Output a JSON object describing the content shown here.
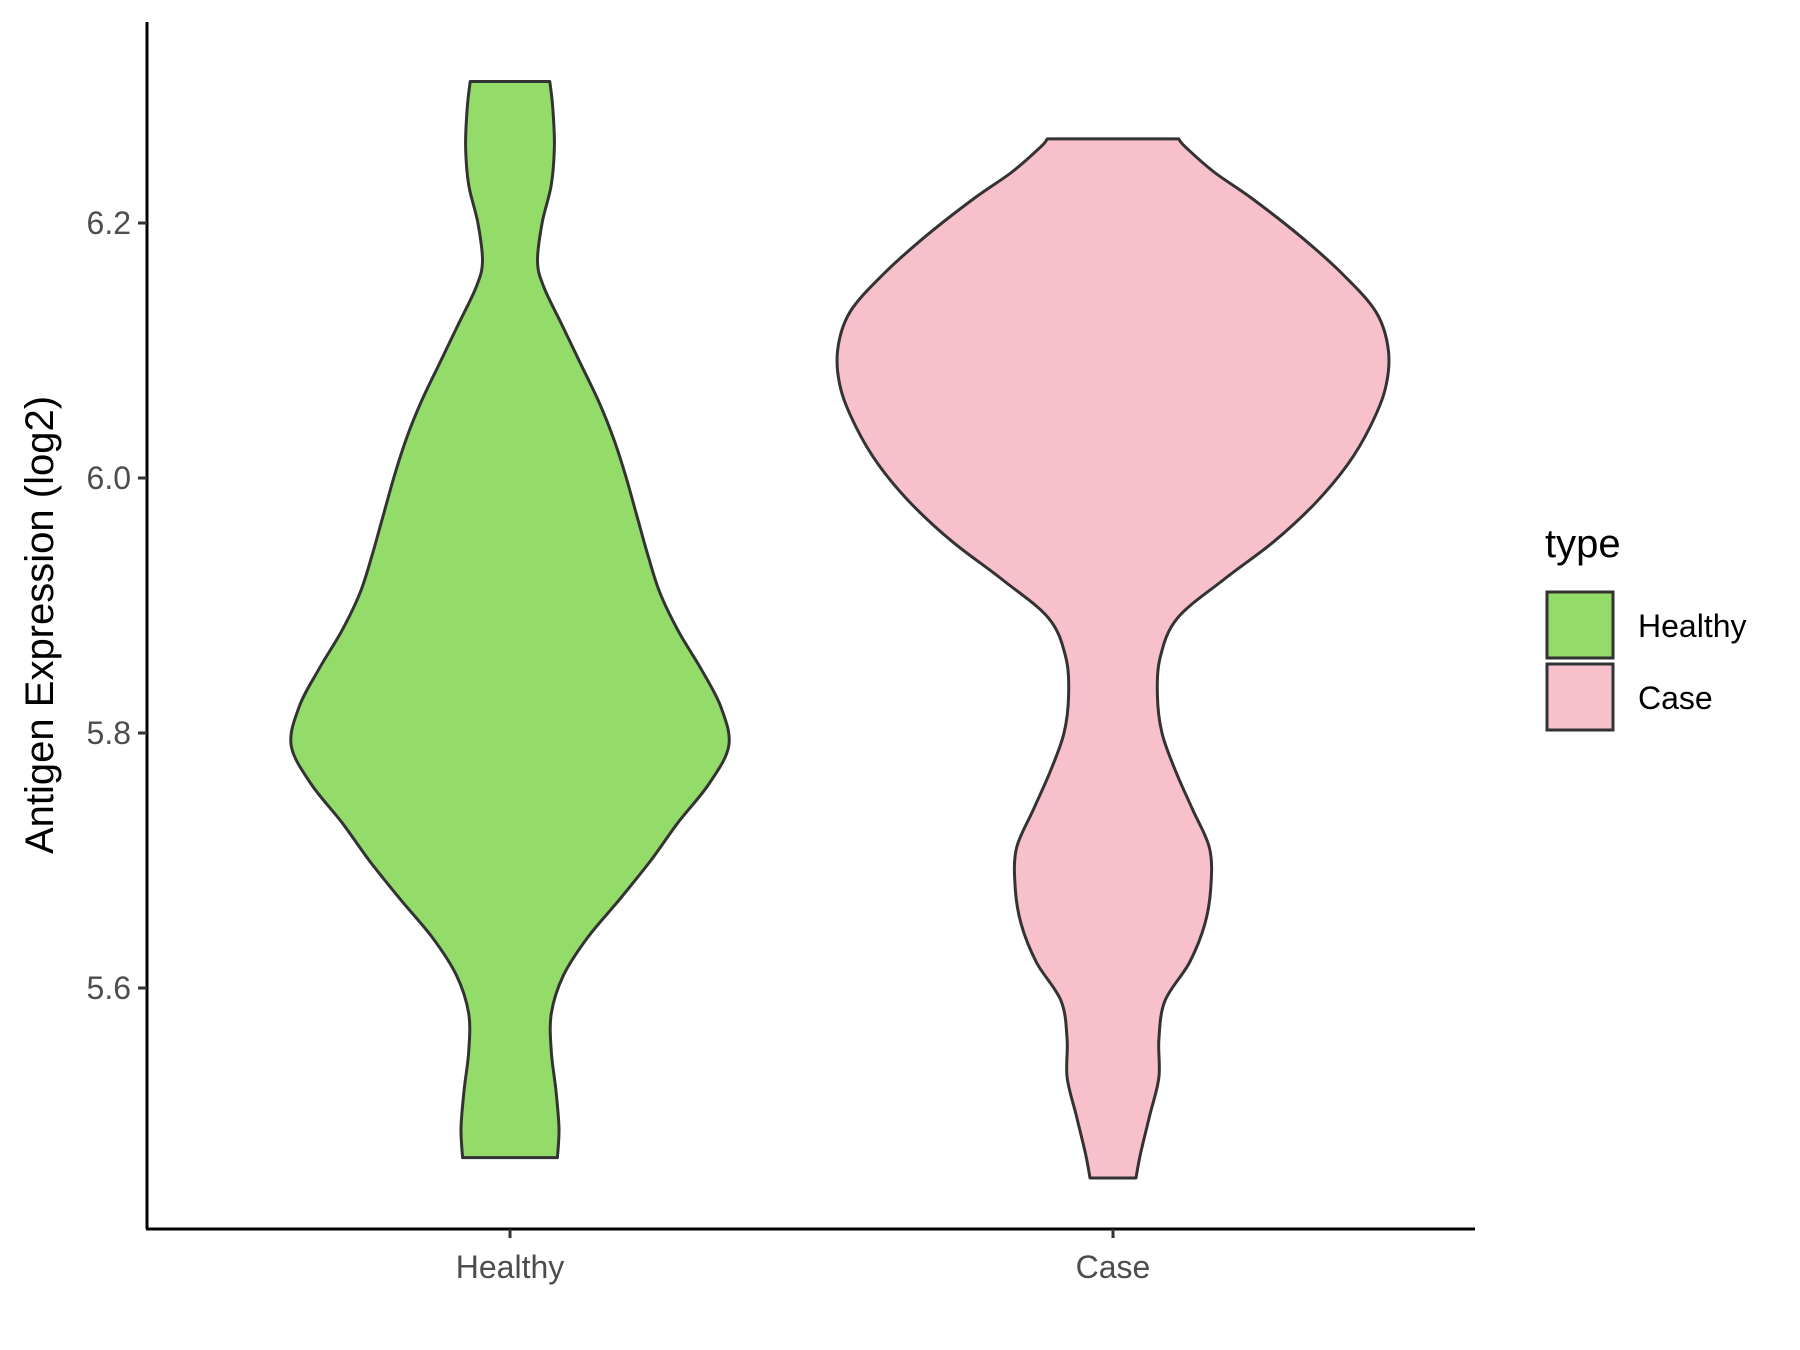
{
  "chart_data": {
    "type": "violin",
    "title": "",
    "xlabel": "",
    "ylabel": "Antigen Expression (log2)",
    "categories": [
      "Healthy",
      "Case"
    ],
    "ylim": [
      5.43,
      6.37
    ],
    "yticks": [
      5.6,
      5.8,
      6.0,
      6.2
    ],
    "ytick_labels": [
      "5.6",
      "5.8",
      "6.0",
      "6.2"
    ],
    "grid": false,
    "legend": {
      "title": "type",
      "placement": "right",
      "entries": [
        "Healthy",
        "Case"
      ]
    },
    "series": [
      {
        "category": "Healthy",
        "color": "#93dc6a",
        "min": 5.467,
        "max": 6.311,
        "density": [
          [
            5.467,
            0.31
          ],
          [
            5.49,
            0.32
          ],
          [
            5.52,
            0.3
          ],
          [
            5.55,
            0.27
          ],
          [
            5.58,
            0.27
          ],
          [
            5.61,
            0.35
          ],
          [
            5.64,
            0.51
          ],
          [
            5.67,
            0.72
          ],
          [
            5.7,
            0.92
          ],
          [
            5.73,
            1.1
          ],
          [
            5.76,
            1.3
          ],
          [
            5.79,
            1.43
          ],
          [
            5.82,
            1.38
          ],
          [
            5.85,
            1.25
          ],
          [
            5.88,
            1.1
          ],
          [
            5.91,
            0.98
          ],
          [
            5.94,
            0.9
          ],
          [
            5.97,
            0.83
          ],
          [
            6.0,
            0.76
          ],
          [
            6.03,
            0.68
          ],
          [
            6.06,
            0.58
          ],
          [
            6.09,
            0.46
          ],
          [
            6.12,
            0.34
          ],
          [
            6.15,
            0.22
          ],
          [
            6.17,
            0.18
          ],
          [
            6.2,
            0.21
          ],
          [
            6.23,
            0.27
          ],
          [
            6.26,
            0.29
          ],
          [
            6.29,
            0.28
          ],
          [
            6.311,
            0.26
          ]
        ]
      },
      {
        "category": "Case",
        "color": "#f8c0cb",
        "min": 5.451,
        "max": 6.266,
        "density": [
          [
            5.451,
            0.15
          ],
          [
            5.47,
            0.18
          ],
          [
            5.5,
            0.24
          ],
          [
            5.53,
            0.3
          ],
          [
            5.56,
            0.3
          ],
          [
            5.59,
            0.34
          ],
          [
            5.62,
            0.5
          ],
          [
            5.65,
            0.6
          ],
          [
            5.68,
            0.64
          ],
          [
            5.71,
            0.63
          ],
          [
            5.74,
            0.52
          ],
          [
            5.77,
            0.41
          ],
          [
            5.8,
            0.32
          ],
          [
            5.83,
            0.29
          ],
          [
            5.86,
            0.31
          ],
          [
            5.89,
            0.42
          ],
          [
            5.92,
            0.72
          ],
          [
            5.95,
            1.05
          ],
          [
            5.98,
            1.32
          ],
          [
            6.01,
            1.53
          ],
          [
            6.04,
            1.68
          ],
          [
            6.07,
            1.78
          ],
          [
            6.1,
            1.8
          ],
          [
            6.13,
            1.72
          ],
          [
            6.16,
            1.5
          ],
          [
            6.19,
            1.22
          ],
          [
            6.22,
            0.9
          ],
          [
            6.24,
            0.66
          ],
          [
            6.26,
            0.47
          ],
          [
            6.266,
            0.43
          ]
        ]
      }
    ]
  }
}
